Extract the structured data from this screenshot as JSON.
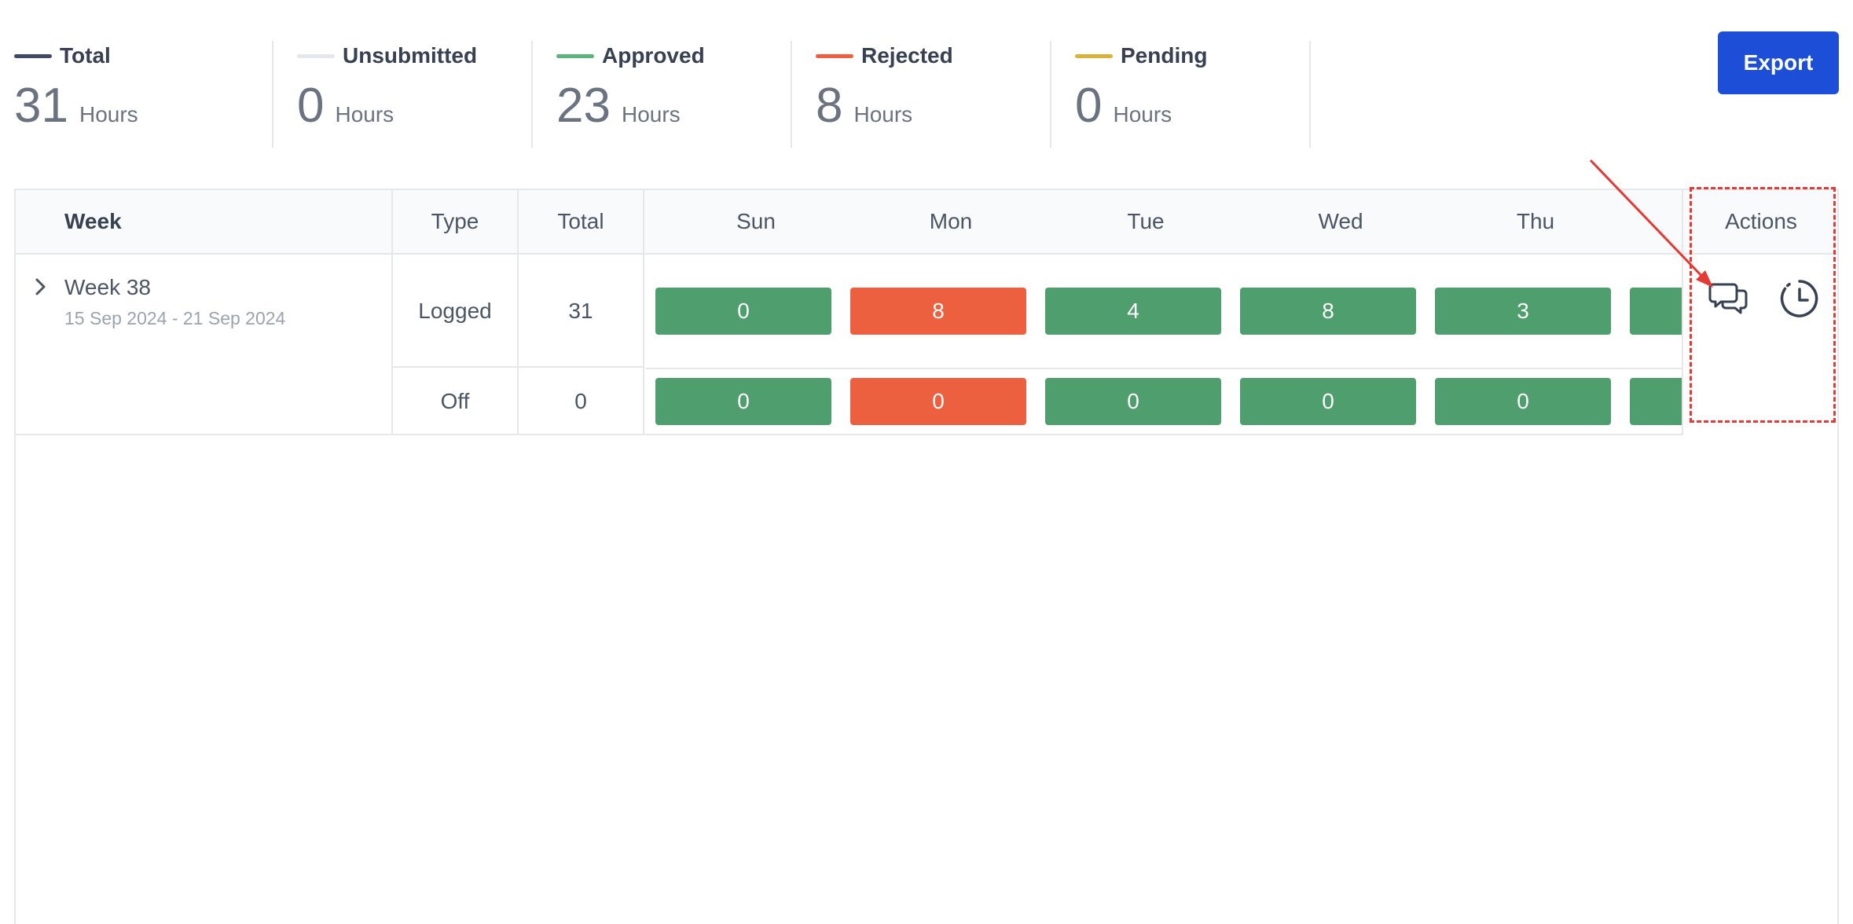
{
  "summary": [
    {
      "label": "Total",
      "value": "31",
      "unit": "Hours",
      "color": "#3f4a63"
    },
    {
      "label": "Unsubmitted",
      "value": "0",
      "unit": "Hours",
      "color": "#e5e7eb"
    },
    {
      "label": "Approved",
      "value": "23",
      "unit": "Hours",
      "color": "#5ab57d"
    },
    {
      "label": "Rejected",
      "value": "8",
      "unit": "Hours",
      "color": "#ec6040"
    },
    {
      "label": "Pending",
      "value": "0",
      "unit": "Hours",
      "color": "#d9b23a"
    }
  ],
  "toolbar": {
    "export_label": "Export"
  },
  "table": {
    "headers": {
      "week": "Week",
      "type": "Type",
      "total": "Total",
      "days": [
        "Sun",
        "Mon",
        "Tue",
        "Wed",
        "Thu"
      ],
      "actions": "Actions"
    },
    "week": {
      "name": "Week 38",
      "range": "15 Sep 2024 - 21 Sep 2024"
    },
    "rows": [
      {
        "type": "Logged",
        "total": "31",
        "cells": [
          {
            "value": "0",
            "status": "green"
          },
          {
            "value": "8",
            "status": "red"
          },
          {
            "value": "4",
            "status": "green"
          },
          {
            "value": "8",
            "status": "green"
          },
          {
            "value": "3",
            "status": "green"
          },
          {
            "value": "",
            "status": "green"
          }
        ]
      },
      {
        "type": "Off",
        "total": "0",
        "cells": [
          {
            "value": "0",
            "status": "green"
          },
          {
            "value": "0",
            "status": "red"
          },
          {
            "value": "0",
            "status": "green"
          },
          {
            "value": "0",
            "status": "green"
          },
          {
            "value": "0",
            "status": "green"
          },
          {
            "value": "",
            "status": "green"
          }
        ]
      }
    ]
  },
  "icons": {
    "comments": "comments-icon",
    "history": "history-icon",
    "chevron": "chevron-right-icon"
  },
  "colors": {
    "accent": "#1d4ed8",
    "approved": "#4f9e6d",
    "rejected": "#ec6040",
    "annotation": "#e53935"
  }
}
